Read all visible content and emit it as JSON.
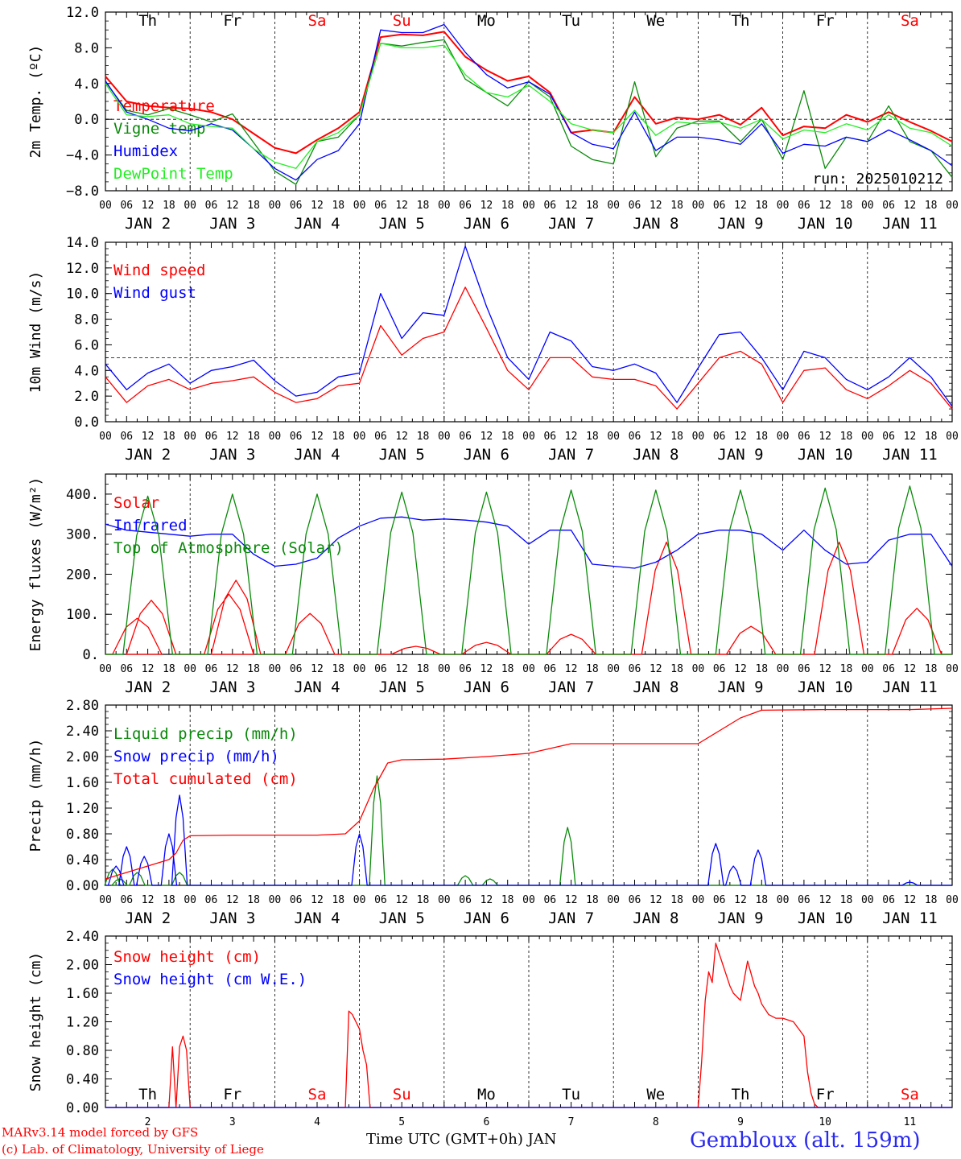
{
  "colors": {
    "red": "#ff0000",
    "green": "#0a8a0a",
    "blue": "#0000ff",
    "lightgreen": "#22ee22",
    "black": "#000000"
  },
  "xaxis": {
    "hour_ticks": [
      "00",
      "06",
      "12",
      "18"
    ],
    "day_labels": [
      "JAN  2",
      "JAN  3",
      "JAN  4",
      "JAN  5",
      "JAN  6",
      "JAN  7",
      "JAN  8",
      "JAN  9",
      "JAN 10",
      "JAN 11"
    ],
    "weekdays": [
      "Th",
      "Fr",
      "Sa",
      "Su",
      "Mo",
      "Tu",
      "We",
      "Th",
      "Fr",
      "Sa"
    ],
    "weekday_colors": [
      "black",
      "black",
      "red",
      "red",
      "black",
      "black",
      "black",
      "black",
      "black",
      "red"
    ],
    "bottom_days": [
      "2",
      "3",
      "4",
      "5",
      "6",
      "7",
      "8",
      "9",
      "10",
      "11"
    ],
    "bottom_label": "Time UTC (GMT+0h) JAN"
  },
  "run_label": "run: 2025010212",
  "footer": {
    "credit_line1": "MARv3.14 model forced by GFS",
    "credit_line2": "(c) Lab. of Climatology, University of Liege",
    "station": "Gembloux (alt. 159m)"
  },
  "chart_data": [
    {
      "type": "line",
      "ylabel": "2m Temp. (ºC)",
      "ylim": [
        -8,
        12
      ],
      "yticks": [
        "12.0",
        "8.0",
        "4.0",
        "0.0",
        "−4.0",
        "−8.0"
      ],
      "ytick_values": [
        12,
        8,
        4,
        0,
        -4,
        -8
      ],
      "ref_line": 0,
      "x_hours": [
        0,
        6,
        12,
        18,
        24,
        30,
        36,
        42,
        48,
        54,
        60,
        66,
        72,
        78,
        84,
        90,
        96,
        102,
        108,
        114,
        120,
        126,
        132,
        138,
        144,
        150,
        156,
        162,
        168,
        174,
        180,
        186,
        192,
        198,
        204,
        210,
        216,
        222,
        228,
        234,
        240
      ],
      "series": [
        {
          "name": "Temperature",
          "color": "red",
          "values": [
            4.8,
            2,
            1.5,
            1.3,
            1.2,
            0.8,
            0,
            -1.6,
            -3.2,
            -3.8,
            -2.3,
            -1,
            0.8,
            9.2,
            9.5,
            9.4,
            9.8,
            7,
            5.5,
            4.3,
            4.8,
            3,
            -1.5,
            -1.2,
            -1.5,
            2.5,
            -0.5,
            0.2,
            0,
            0.5,
            -0.6,
            1.3,
            -1.8,
            -0.8,
            -1,
            0.5,
            -0.3,
            0.8,
            -0.3,
            -1.3,
            -2.5
          ]
        },
        {
          "name": "Vigne temp",
          "color": "green",
          "values": [
            4.2,
            1,
            0.5,
            1.2,
            0.5,
            -0.3,
            0.6,
            -2.6,
            -5.8,
            -7.3,
            -2.5,
            -2,
            0.5,
            8.5,
            8.2,
            8.6,
            8.9,
            4.5,
            3,
            1.5,
            4.2,
            2.5,
            -3,
            -4.5,
            -5,
            4.2,
            -4.2,
            -1,
            -0.2,
            -0.2,
            -2.5,
            0,
            -4.5,
            3.2,
            -5.5,
            -2,
            -2.5,
            1.5,
            -2.5,
            -3.5,
            -6.5
          ]
        },
        {
          "name": "Humidex",
          "color": "blue",
          "values": [
            4.3,
            0.8,
            0,
            -1,
            -1.3,
            -0.5,
            -1.2,
            -3.3,
            -5.5,
            -6.8,
            -4.5,
            -3.5,
            -0.5,
            10,
            9.7,
            9.7,
            10.6,
            7.5,
            5,
            3.5,
            4.2,
            2.8,
            -1.5,
            -2.8,
            -3.3,
            0.8,
            -3.5,
            -2,
            -2,
            -2.3,
            -2.8,
            -0.5,
            -3.8,
            -2.8,
            -3,
            -2,
            -2.5,
            -1.2,
            -2.3,
            -3.5,
            -5.2
          ]
        },
        {
          "name": "DewPoint Temp",
          "color": "lightgreen",
          "values": [
            4,
            0.5,
            0.3,
            0.5,
            -0.5,
            -0.8,
            -1,
            -3.3,
            -4.8,
            -5.5,
            -2.5,
            -1.5,
            0.5,
            8.5,
            8,
            8,
            8.3,
            5,
            3,
            2.5,
            3.8,
            2,
            -0.5,
            -1.2,
            -1.5,
            1,
            -1.8,
            -0.3,
            -0.5,
            -0.3,
            -1,
            0,
            -2.2,
            -1.2,
            -1.5,
            -0.5,
            -1.2,
            0.5,
            -1,
            -1.5,
            -3
          ]
        }
      ]
    },
    {
      "type": "line",
      "ylabel": "10m Wind (m/s)",
      "ylim": [
        0,
        14
      ],
      "yticks": [
        "14.0",
        "12.0",
        "10.0",
        "8.0",
        "6.0",
        "4.0",
        "2.0",
        "0.0"
      ],
      "ytick_values": [
        14,
        12,
        10,
        8,
        6,
        4,
        2,
        0
      ],
      "ref_line": 5,
      "x_hours": [
        0,
        6,
        12,
        18,
        24,
        30,
        36,
        42,
        48,
        54,
        60,
        66,
        72,
        78,
        84,
        90,
        96,
        102,
        108,
        114,
        120,
        126,
        132,
        138,
        144,
        150,
        156,
        162,
        168,
        174,
        180,
        186,
        192,
        198,
        204,
        210,
        216,
        222,
        228,
        234,
        240
      ],
      "series": [
        {
          "name": "Wind speed",
          "color": "red",
          "values": [
            3.5,
            1.5,
            2.8,
            3.3,
            2.5,
            3,
            3.2,
            3.5,
            2.3,
            1.5,
            1.8,
            2.8,
            3,
            7.5,
            5.2,
            6.5,
            7,
            10.5,
            7.3,
            4,
            2.5,
            5,
            5,
            3.5,
            3.3,
            3.3,
            2.8,
            1,
            3,
            5,
            5.5,
            4.5,
            1.5,
            4,
            4.2,
            2.5,
            1.8,
            2.8,
            4,
            3,
            1
          ]
        },
        {
          "name": "Wind gust",
          "color": "blue",
          "values": [
            4.5,
            2.5,
            3.8,
            4.5,
            3,
            4,
            4.3,
            4.8,
            3.2,
            2,
            2.3,
            3.5,
            3.8,
            10,
            6.5,
            8.5,
            8.3,
            13.7,
            9,
            5,
            3.3,
            7,
            6.3,
            4.3,
            4,
            4.5,
            3.8,
            1.5,
            4.2,
            6.8,
            7,
            5,
            2.5,
            5.5,
            5,
            3.3,
            2.5,
            3.5,
            5,
            3.5,
            1.2
          ]
        }
      ]
    },
    {
      "type": "line",
      "ylabel": "Energy fluxes (W/m²)",
      "ylim": [
        0,
        450
      ],
      "yticks": [
        "400.",
        "300.",
        "200.",
        "100.",
        "0."
      ],
      "ytick_values": [
        400,
        300,
        200,
        100,
        0
      ],
      "series": [
        {
          "name": "Solar",
          "color": "red",
          "peaks": [
            [
              9,
              90
            ],
            [
              13,
              135
            ],
            [
              35,
              150
            ],
            [
              37,
              185
            ],
            [
              58,
              102
            ],
            [
              88,
              20
            ],
            [
              108,
              30
            ],
            [
              132,
              50
            ],
            [
              159,
              280
            ],
            [
              183,
              70
            ],
            [
              208,
              280
            ],
            [
              230,
              115
            ]
          ]
        },
        {
          "name": "Infrared",
          "color": "blue",
          "x_hours": [
            0,
            6,
            12,
            18,
            24,
            30,
            36,
            42,
            48,
            54,
            60,
            66,
            72,
            78,
            84,
            90,
            96,
            102,
            108,
            114,
            120,
            126,
            132,
            138,
            144,
            150,
            156,
            162,
            168,
            174,
            180,
            186,
            192,
            198,
            204,
            210,
            216,
            222,
            228,
            234,
            240
          ],
          "values": [
            325,
            310,
            305,
            300,
            295,
            300,
            300,
            250,
            220,
            225,
            240,
            290,
            320,
            340,
            343,
            335,
            338,
            335,
            330,
            320,
            275,
            310,
            310,
            225,
            220,
            215,
            230,
            260,
            300,
            310,
            310,
            300,
            260,
            310,
            260,
            225,
            230,
            285,
            300,
            300,
            220
          ]
        },
        {
          "name": "Top of Atmosphere (Solar)",
          "color": "green",
          "peaks": [
            [
              12,
              395
            ],
            [
              36,
              400
            ],
            [
              60,
              400
            ],
            [
              84,
              405
            ],
            [
              108,
              405
            ],
            [
              132,
              410
            ],
            [
              156,
              410
            ],
            [
              180,
              410
            ],
            [
              204,
              415
            ],
            [
              228,
              420
            ]
          ]
        }
      ]
    },
    {
      "type": "line",
      "ylabel": "Precip (mm/h)",
      "ylim": [
        0,
        2.8
      ],
      "yticks": [
        "2.80",
        "2.40",
        "2.00",
        "1.60",
        "1.20",
        "0.80",
        "0.40",
        "0.00"
      ],
      "ytick_values": [
        2.8,
        2.4,
        2.0,
        1.6,
        1.2,
        0.8,
        0.4,
        0.0
      ],
      "series": [
        {
          "name": "Liquid precip (mm/h)",
          "color": "green",
          "peaks": [
            [
              2,
              0.25
            ],
            [
              4,
              0.1
            ],
            [
              9,
              0.2
            ],
            [
              21,
              0.2
            ],
            [
              77,
              1.7
            ],
            [
              102,
              0.15
            ],
            [
              109,
              0.1
            ],
            [
              131,
              0.9
            ]
          ]
        },
        {
          "name": "Snow precip (mm/h)",
          "color": "blue",
          "peaks": [
            [
              3,
              0.3
            ],
            [
              6,
              0.6
            ],
            [
              11,
              0.45
            ],
            [
              18,
              0.8
            ],
            [
              21,
              1.4
            ],
            [
              72,
              0.8
            ],
            [
              173,
              0.65
            ],
            [
              178,
              0.3
            ],
            [
              185,
              0.55
            ],
            [
              228,
              0.05
            ]
          ]
        },
        {
          "name": "Total cumulated (cm)",
          "color": "red",
          "x_hours": [
            0,
            6,
            12,
            18,
            20,
            22,
            24,
            36,
            60,
            68,
            72,
            76,
            80,
            84,
            96,
            108,
            120,
            132,
            144,
            168,
            174,
            180,
            186,
            204,
            228,
            240
          ],
          "values": [
            0.1,
            0.2,
            0.3,
            0.4,
            0.5,
            0.7,
            0.77,
            0.78,
            0.78,
            0.8,
            1,
            1.5,
            1.9,
            1.95,
            1.96,
            2.0,
            2.05,
            2.2,
            2.2,
            2.2,
            2.4,
            2.6,
            2.72,
            2.73,
            2.73,
            2.75
          ]
        }
      ]
    },
    {
      "type": "line",
      "ylabel": "Snow height (cm)",
      "ylim": [
        0,
        2.4
      ],
      "yticks": [
        "2.40",
        "2.00",
        "1.60",
        "1.20",
        "0.80",
        "0.40",
        "0.00"
      ],
      "ytick_values": [
        2.4,
        2.0,
        1.6,
        1.2,
        0.8,
        0.4,
        0.0
      ],
      "series": [
        {
          "name": "Snow height (cm)",
          "color": "red",
          "x_hours": [
            0,
            18,
            19,
            20,
            21,
            22,
            23,
            24,
            25,
            68,
            69,
            70,
            72,
            73,
            74,
            75,
            76,
            168,
            169,
            170,
            171,
            172,
            173,
            174,
            175,
            176,
            177,
            178,
            180,
            182,
            184,
            185,
            186,
            188,
            190,
            192,
            195,
            198,
            199,
            200,
            201,
            202,
            240
          ],
          "values": [
            0,
            0,
            0.85,
            0,
            0.85,
            1,
            0.8,
            0,
            0,
            0,
            1.35,
            1.3,
            1.1,
            0.8,
            0.6,
            0,
            0,
            0,
            0.65,
            1.5,
            1.9,
            1.75,
            2.3,
            2.15,
            2.0,
            1.85,
            1.7,
            1.6,
            1.5,
            2.05,
            1.7,
            1.6,
            1.45,
            1.3,
            1.25,
            1.25,
            1.2,
            1.0,
            0.5,
            0.2,
            0.05,
            0,
            0
          ]
        },
        {
          "name": "Snow height (cm W.E.)",
          "color": "blue",
          "x_hours": [
            0,
            240
          ],
          "values": [
            0,
            0
          ]
        }
      ]
    }
  ]
}
